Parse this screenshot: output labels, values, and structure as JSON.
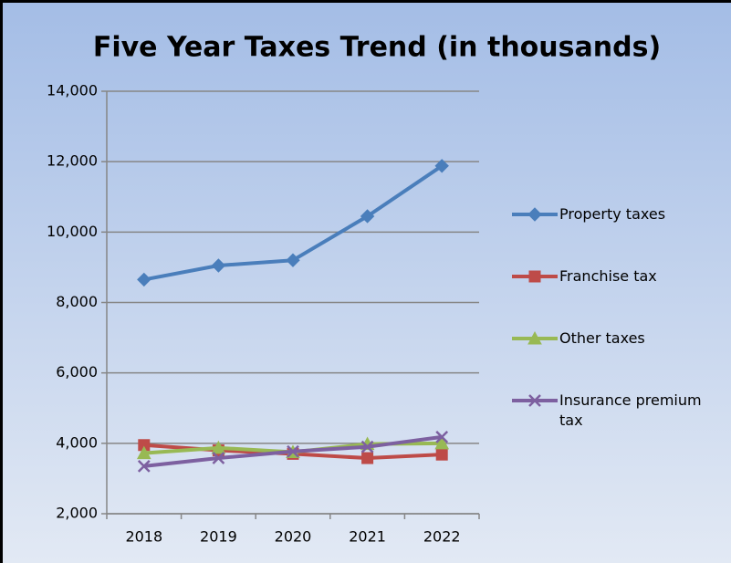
{
  "chart_data": {
    "type": "line",
    "title": "Five Year Taxes Trend (in thousands)",
    "categories": [
      "2018",
      "2019",
      "2020",
      "2021",
      "2022"
    ],
    "series": [
      {
        "name": "Property taxes",
        "color": "#4a7ebb",
        "marker": "diamond",
        "values": [
          8650,
          9050,
          9200,
          10450,
          11880
        ]
      },
      {
        "name": "Franchise tax",
        "color": "#be4b48",
        "marker": "square",
        "values": [
          3950,
          3800,
          3700,
          3580,
          3680
        ]
      },
      {
        "name": "Other taxes",
        "color": "#98b954",
        "marker": "triangle",
        "values": [
          3720,
          3870,
          3750,
          3980,
          4000
        ]
      },
      {
        "name": "Insurance premium tax",
        "color": "#7d60a0",
        "marker": "x",
        "values": [
          3350,
          3580,
          3770,
          3900,
          4180
        ]
      }
    ],
    "ylim": [
      2000,
      14000
    ],
    "yticks": [
      {
        "value": 2000,
        "label": "2,000"
      },
      {
        "value": 4000,
        "label": "4,000"
      },
      {
        "value": 6000,
        "label": "6,000"
      },
      {
        "value": 8000,
        "label": "8,000"
      },
      {
        "value": 10000,
        "label": "10,000"
      },
      {
        "value": 12000,
        "label": "12,000"
      },
      {
        "value": 14000,
        "label": "14,000"
      }
    ],
    "grid": true,
    "legend": "right"
  }
}
